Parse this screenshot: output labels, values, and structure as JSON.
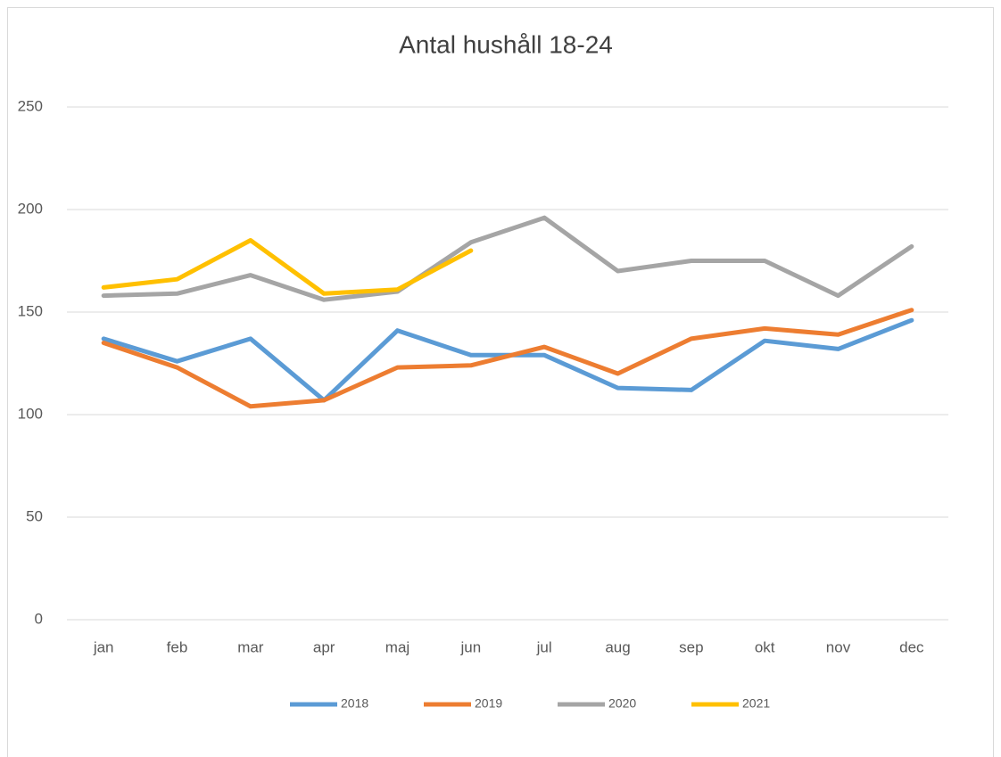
{
  "chart_data": {
    "type": "line",
    "title": "Antal hushåll 18-24",
    "categories": [
      "jan",
      "feb",
      "mar",
      "apr",
      "maj",
      "jun",
      "jul",
      "aug",
      "sep",
      "okt",
      "nov",
      "dec"
    ],
    "series": [
      {
        "name": "2018",
        "color": "#5b9bd5",
        "values": [
          137,
          126,
          137,
          107,
          141,
          129,
          129,
          113,
          112,
          136,
          132,
          146
        ]
      },
      {
        "name": "2019",
        "color": "#ed7d31",
        "values": [
          135,
          123,
          104,
          107,
          123,
          124,
          133,
          120,
          137,
          142,
          139,
          151
        ]
      },
      {
        "name": "2020",
        "color": "#a5a5a5",
        "values": [
          158,
          159,
          168,
          156,
          160,
          184,
          196,
          170,
          175,
          175,
          158,
          182
        ]
      },
      {
        "name": "2021",
        "color": "#ffc000",
        "values": [
          162,
          166,
          185,
          159,
          161,
          180,
          null,
          null,
          null,
          null,
          null,
          null
        ]
      }
    ],
    "ylim": [
      0,
      250
    ],
    "yticks": [
      0,
      50,
      100,
      150,
      200,
      250
    ],
    "grid": true,
    "legend": "bottom"
  }
}
